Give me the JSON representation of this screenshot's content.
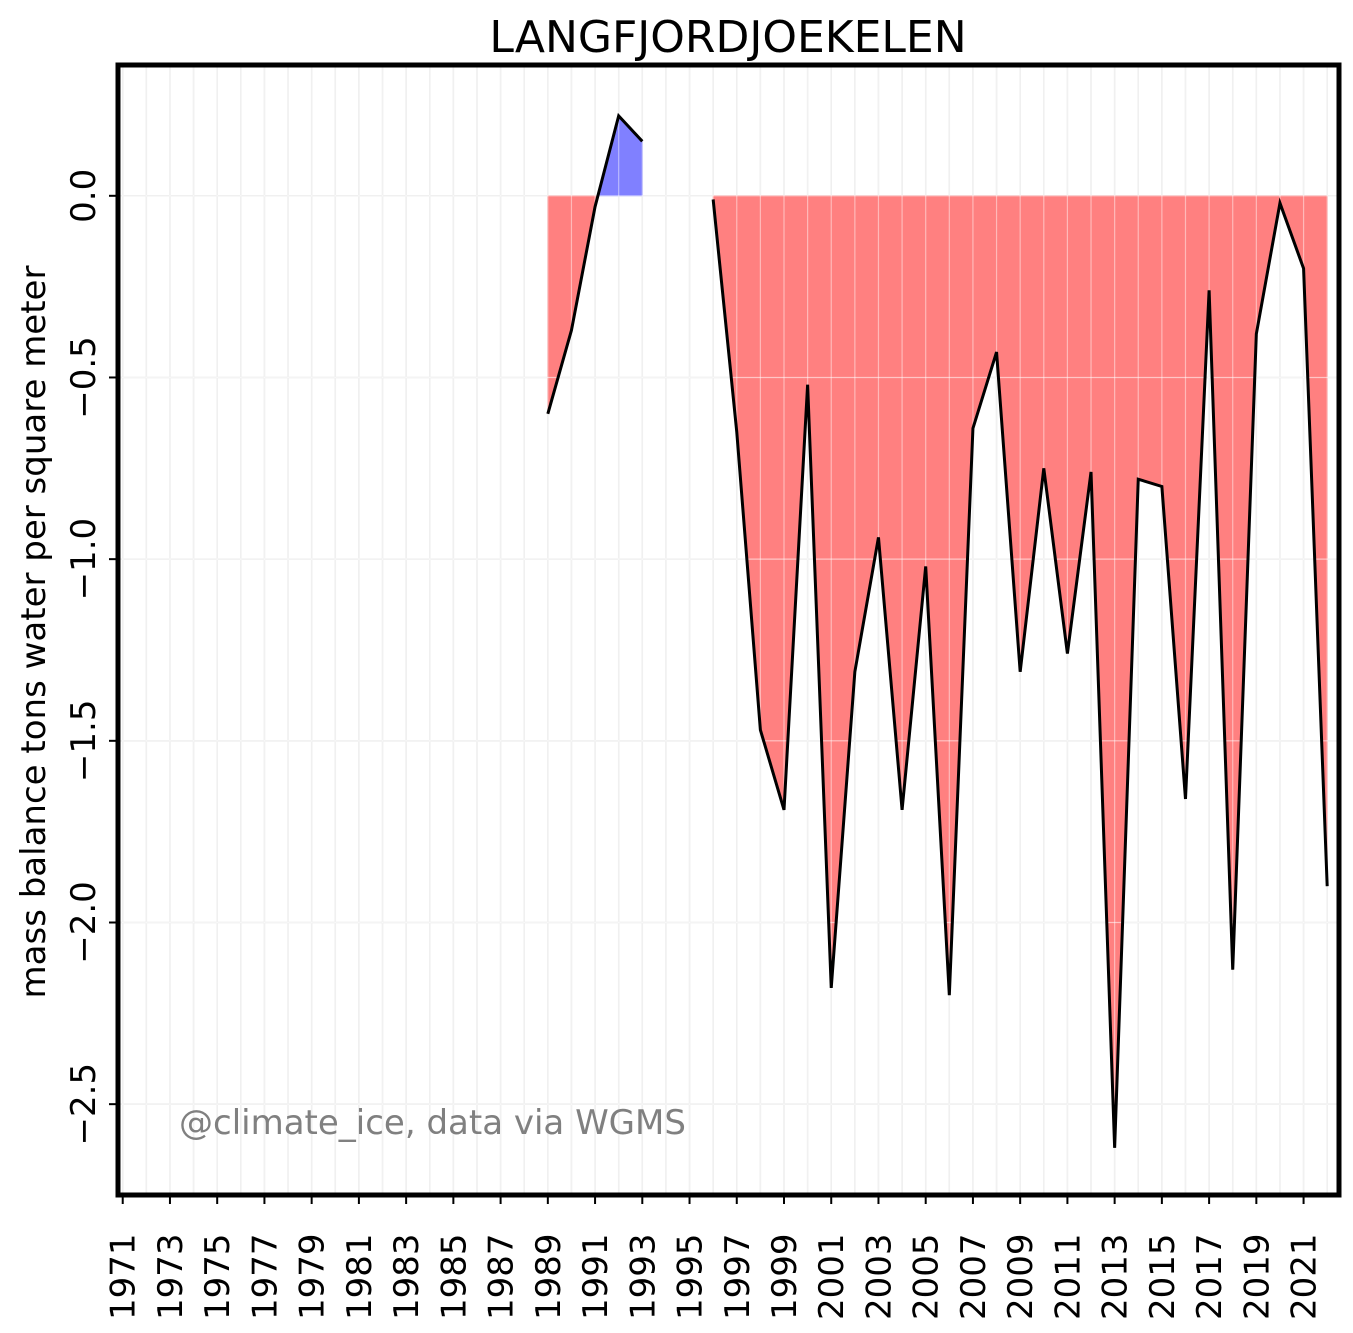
{
  "chart_data": {
    "type": "line",
    "title": "LANGFJORDJOEKELEN",
    "xlabel": "",
    "ylabel": "mass balance tons water per square meter",
    "credit": "@climate_ice, data via WGMS",
    "xlim": [
      1970.8,
      2022.5
    ],
    "ylim": [
      -2.75,
      0.36
    ],
    "x_tick_labels": [
      "1971",
      "1973",
      "1975",
      "1977",
      "1979",
      "1981",
      "1983",
      "1985",
      "1987",
      "1989",
      "1991",
      "1993",
      "1995",
      "1997",
      "1999",
      "2001",
      "2003",
      "2005",
      "2007",
      "2009",
      "2011",
      "2013",
      "2015",
      "2017",
      "2019",
      "2021"
    ],
    "y_ticks": [
      0.0,
      -0.5,
      -1.0,
      -1.5,
      -2.0,
      -2.5
    ],
    "y_tick_labels": [
      "0.0",
      "−0.5",
      "−1.0",
      "−1.5",
      "−2.0",
      "−2.5"
    ],
    "grid": true,
    "colors": {
      "line": "#000000",
      "negative_fill": "#ff8080",
      "positive_fill": "#8080ff",
      "grid": "#e6e6e6",
      "credit": "#808080"
    },
    "series": [
      {
        "segment": 1,
        "x": [
          1989,
          1990,
          1991,
          1992,
          1993
        ],
        "y": [
          -0.6,
          -0.37,
          -0.03,
          0.22,
          0.15
        ]
      },
      {
        "segment": 2,
        "x": [
          1996,
          1997,
          1998,
          1999,
          2000,
          2001,
          2002,
          2003,
          2004,
          2005,
          2006,
          2007,
          2008,
          2009,
          2010,
          2011,
          2012,
          2013,
          2014,
          2015,
          2016,
          2017,
          2018,
          2019,
          2020,
          2021,
          2022
        ],
        "y": [
          -0.01,
          -0.65,
          -1.47,
          -1.69,
          -0.52,
          -2.18,
          -1.31,
          -0.94,
          -1.69,
          -1.02,
          -2.2,
          -0.64,
          -0.43,
          -1.31,
          -0.75,
          -1.26,
          -0.76,
          -2.62,
          -0.78,
          -0.8,
          -1.66,
          -0.26,
          -2.13,
          -0.38,
          -0.02,
          -0.2,
          -1.9
        ]
      }
    ]
  }
}
